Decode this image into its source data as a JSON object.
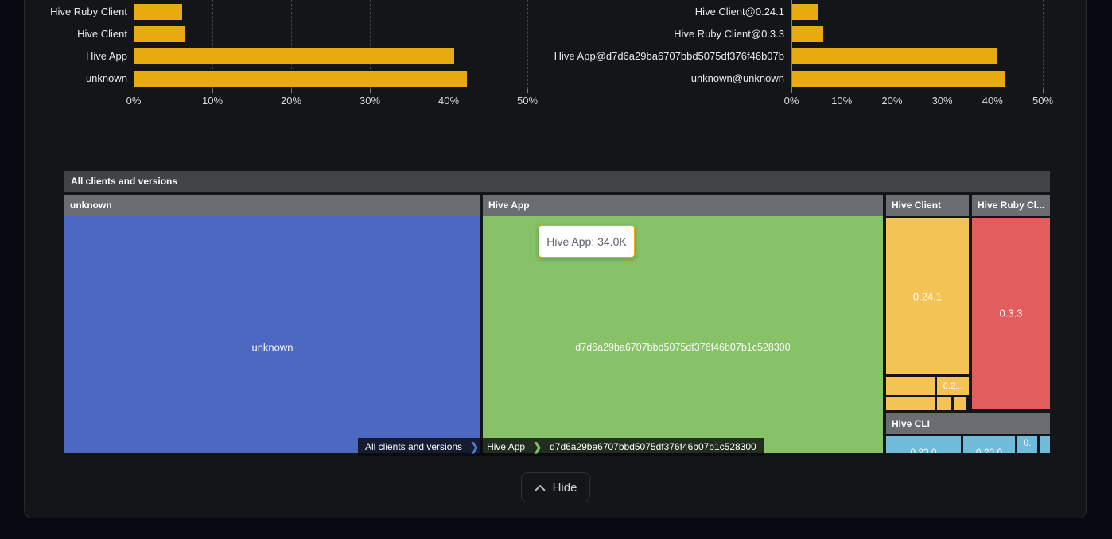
{
  "colors": {
    "bar": "#e7ab10",
    "blue": "#4d68c0",
    "green": "#87c168",
    "orange": "#f3c355",
    "red": "#e25e5e",
    "light_blue": "#6fbbd9",
    "root_header_bg": "#414447",
    "section_header_bg": "#6a6d71",
    "tooltip_border": "#eaa90f",
    "crumb_sep_blue": "#5873cf",
    "crumb_sep_green": "#86c168"
  },
  "page": {
    "hide_label": "Hide"
  },
  "chart_data": [
    {
      "type": "bar",
      "orientation": "horizontal",
      "title": "",
      "categories": [
        "Hive Ruby Client",
        "Hive Client",
        "Hive App",
        "unknown"
      ],
      "values": [
        6.1,
        6.4,
        40.6,
        42.2
      ],
      "unit": "%",
      "xticks": [
        "0%",
        "10%",
        "20%",
        "30%",
        "40%",
        "50%"
      ],
      "xlim": [
        0,
        50
      ],
      "grid": "vertical-dashed",
      "legend": "none"
    },
    {
      "type": "bar",
      "orientation": "horizontal",
      "title": "",
      "categories": [
        "Hive Client@0.24.1",
        "Hive Ruby Client@0.3.3",
        "Hive App@d7d6a29ba6707bbd5075df376f46b07b",
        "unknown@unknown"
      ],
      "values": [
        5.3,
        6.2,
        40.7,
        42.3
      ],
      "unit": "%",
      "xticks": [
        "0%",
        "10%",
        "20%",
        "30%",
        "40%",
        "50%"
      ],
      "xlim": [
        0,
        50
      ],
      "grid": "vertical-dashed",
      "legend": "none"
    },
    {
      "type": "treemap",
      "title": "All clients and versions",
      "tooltip": "Hive App: 34.0K",
      "breadcrumb": [
        "All clients and versions",
        "Hive App",
        "d7d6a29ba6707bbd5075df376f46b07b1c528300"
      ],
      "sections": [
        {
          "header": "unknown",
          "color": "blue",
          "cells": [
            {
              "label": "unknown"
            }
          ]
        },
        {
          "header": "Hive App",
          "color": "green",
          "cells": [
            {
              "label": "d7d6a29ba6707bbd5075df376f46b07b1c528300",
              "tooltip": "Hive App: 34.0K"
            }
          ]
        },
        {
          "header": "Hive Client",
          "color": "orange",
          "cells": [
            {
              "label": "0.24.1"
            },
            {
              "label": ""
            },
            {
              "label": "0.2..."
            },
            {
              "label": ""
            },
            {
              "label": ""
            },
            {
              "label": ""
            }
          ]
        },
        {
          "header": "Hive Ruby Cl...",
          "color": "red",
          "cells": [
            {
              "label": "0.3.3"
            }
          ]
        },
        {
          "header": "Hive CLI",
          "color": "light_blue",
          "cells": [
            {
              "label": "0.23.0"
            },
            {
              "label": "0.23.0"
            },
            {
              "label": "0."
            },
            {
              "label": ""
            }
          ]
        }
      ]
    }
  ]
}
